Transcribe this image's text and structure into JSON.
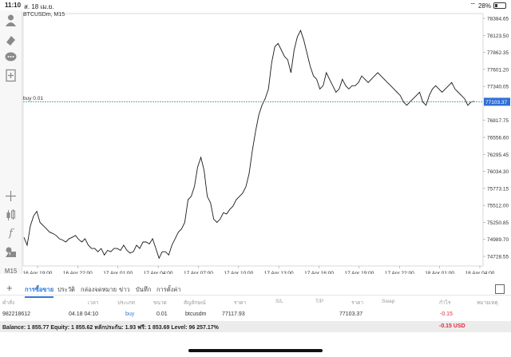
{
  "status": {
    "time": "11:10",
    "date": "ส. 18 เม.ย.",
    "battery": "28%"
  },
  "chart": {
    "symbol": "BTCUSDm, M15",
    "buy_label": "buy 0.01",
    "current_price": "77103.37",
    "colors": {
      "line": "#1a1a1a",
      "buy_line": "#4aa3a3",
      "price_box": "#2f6fd6",
      "grid": "#e6e6e6"
    },
    "period_label": "M15"
  },
  "chart_data": {
    "type": "line",
    "y_ticks": [
      "78384.65",
      "78123.50",
      "77862.35",
      "77601.20",
      "77340.05",
      "77103.37",
      "76817.75",
      "76556.60",
      "76295.45",
      "76034.30",
      "75773.15",
      "75512.00",
      "75250.85",
      "74989.70",
      "74728.55"
    ],
    "x_ticks": [
      "16 Apr 19:00",
      "16 Apr 22:00",
      "17 Apr 01:00",
      "17 Apr 04:00",
      "17 Apr 07:00",
      "17 Apr 10:00",
      "17 Apr 13:00",
      "17 Apr 16:00",
      "17 Apr 19:00",
      "17 Apr 22:00",
      "18 Apr 01:00",
      "18 Apr 04:00"
    ],
    "ylim": [
      74600,
      78500
    ],
    "series": [
      {
        "values": [
          75020,
          74900,
          75200,
          75350,
          75420,
          75250,
          75200,
          75150,
          75100,
          75080,
          75050,
          75000,
          74980,
          74950,
          75000,
          75020,
          75050,
          74990,
          74950,
          75000,
          74900,
          74850,
          74850,
          74800,
          74850,
          74750,
          74820,
          74800,
          74850,
          74850,
          74820,
          74900,
          74820,
          74780,
          74800,
          74900,
          74850,
          74950,
          74950,
          74920,
          75000,
          74850,
          74700,
          74800,
          74800,
          74750,
          74900,
          75000,
          75100,
          75150,
          75250,
          75600,
          75650,
          75800,
          76100,
          76250,
          76050,
          75650,
          75550,
          75300,
          75250,
          75300,
          75400,
          75380,
          75450,
          75500,
          75600,
          75650,
          75700,
          75800,
          76000,
          76350,
          76650,
          76900,
          77050,
          77150,
          77300,
          77700,
          77950,
          78000,
          77900,
          77800,
          77750,
          77550,
          77900,
          78100,
          78200,
          78050,
          77850,
          77650,
          77500,
          77450,
          77300,
          77350,
          77550,
          77450,
          77350,
          77250,
          77300,
          77450,
          77350,
          77300,
          77350,
          77350,
          77400,
          77500,
          77450,
          77400,
          77450,
          77500,
          77550,
          77500,
          77450,
          77400,
          77350,
          77300,
          77250,
          77200,
          77100,
          77050,
          77100,
          77150,
          77200,
          77250,
          77100,
          77050,
          77200,
          77300,
          77350,
          77300,
          77250,
          77300,
          77350,
          77400,
          77300,
          77250,
          77200,
          77150,
          77050,
          77100,
          77110
        ]
      }
    ]
  },
  "tabs": {
    "items": [
      "การซื้อขาย",
      "ประวัติ",
      "กล่องจดหมาย",
      "ข่าว",
      "บันทึก",
      "การตั้งค่า"
    ]
  },
  "table": {
    "headers": [
      "คำสั่ง",
      "เวลา",
      "ประเภท",
      "ขนาด",
      "สัญลักษณ์",
      "ราคา",
      "S/L",
      "T/P",
      "ราคา",
      "Swap",
      "กำไร",
      "หมายเหตุ"
    ],
    "row": {
      "order": "982218612",
      "time": "04.18 04:10",
      "type": "buy",
      "size": "0.01",
      "symbol": "btcusdm",
      "open_price": "77117.93",
      "current_price": "77103.37",
      "profit": "-0.15"
    }
  },
  "balance": {
    "text": "Balance: 1 855.77 Equity: 1 855.62 หลักประกัน: 1.93 ฟรี: 1 853.69 Level: 96 257.17%",
    "pnl": "-0.15  USD"
  }
}
